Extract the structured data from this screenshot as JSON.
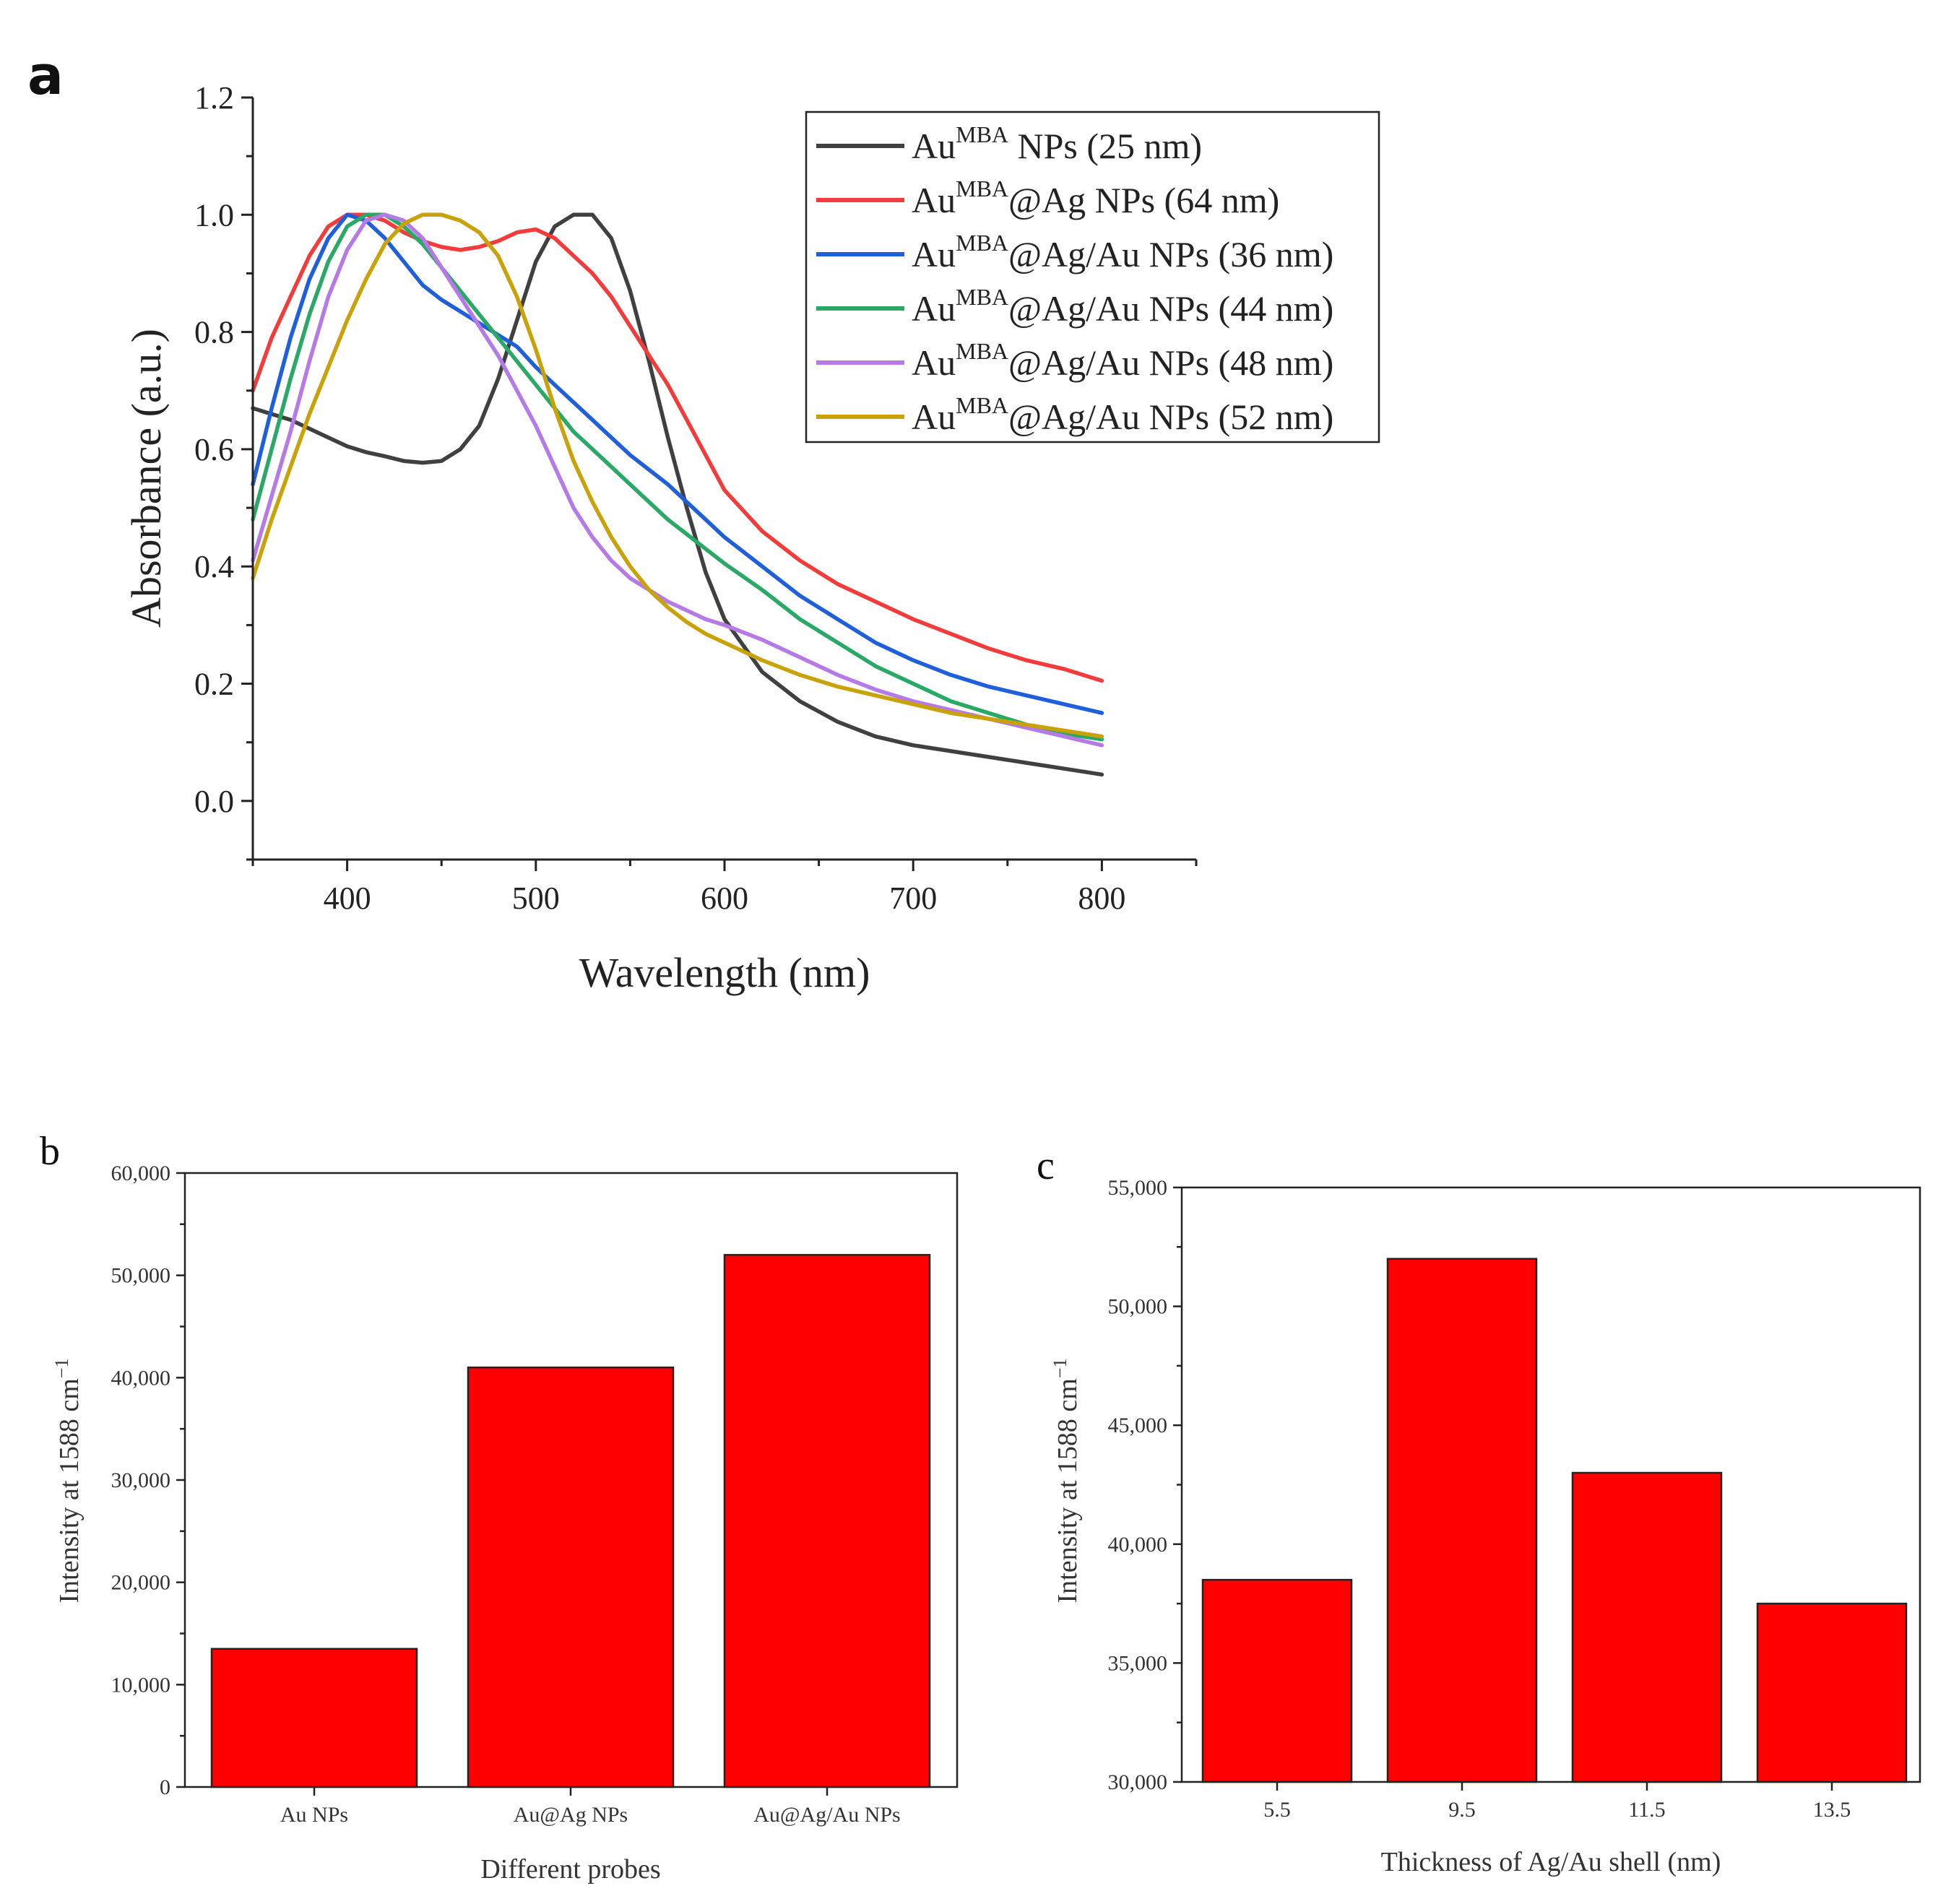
{
  "chart_data": [
    {
      "panel": "a",
      "type": "line",
      "title": "",
      "xlabel": "Wavelength (nm)",
      "ylabel": "Absorbance (a.u.)",
      "xlim": [
        350,
        850
      ],
      "ylim": [
        -0.1,
        1.2
      ],
      "xticks": [
        "400",
        "500",
        "600",
        "700",
        "800"
      ],
      "yticks": [
        "0.0",
        "0.2",
        "0.4",
        "0.6",
        "0.8",
        "1.0",
        "1.2"
      ],
      "x": [
        350,
        360,
        370,
        380,
        390,
        400,
        410,
        420,
        430,
        440,
        450,
        460,
        470,
        480,
        490,
        500,
        510,
        520,
        530,
        540,
        550,
        560,
        570,
        580,
        590,
        600,
        620,
        640,
        660,
        680,
        700,
        720,
        740,
        760,
        780,
        800
      ],
      "legend_position": "top-right",
      "series": [
        {
          "name_base": "Au",
          "name_sup": "MBA",
          "name_rest": " NPs (25 nm)",
          "color": "#404040",
          "values": [
            0.67,
            0.66,
            0.65,
            0.635,
            0.62,
            0.605,
            0.595,
            0.588,
            0.58,
            0.577,
            0.58,
            0.6,
            0.64,
            0.72,
            0.82,
            0.92,
            0.98,
            1.0,
            1.0,
            0.96,
            0.87,
            0.75,
            0.62,
            0.5,
            0.39,
            0.31,
            0.22,
            0.17,
            0.135,
            0.11,
            0.095,
            0.085,
            0.075,
            0.065,
            0.055,
            0.045
          ]
        },
        {
          "name_base": "Au",
          "name_sup": "MBA",
          "name_rest": "@Ag NPs (64 nm)",
          "color": "#f23c3c",
          "values": [
            0.7,
            0.79,
            0.86,
            0.93,
            0.98,
            1.0,
            1.0,
            0.99,
            0.97,
            0.955,
            0.945,
            0.94,
            0.945,
            0.955,
            0.97,
            0.975,
            0.96,
            0.93,
            0.9,
            0.86,
            0.81,
            0.76,
            0.71,
            0.65,
            0.59,
            0.53,
            0.46,
            0.41,
            0.37,
            0.34,
            0.31,
            0.285,
            0.26,
            0.24,
            0.225,
            0.205
          ]
        },
        {
          "name_base": "Au",
          "name_sup": "MBA",
          "name_rest": "@Ag/Au NPs (36 nm)",
          "color": "#1f5fd9",
          "values": [
            0.54,
            0.67,
            0.79,
            0.89,
            0.96,
            1.0,
            0.99,
            0.96,
            0.92,
            0.88,
            0.855,
            0.835,
            0.815,
            0.795,
            0.775,
            0.74,
            0.71,
            0.68,
            0.65,
            0.62,
            0.59,
            0.565,
            0.54,
            0.51,
            0.48,
            0.45,
            0.4,
            0.35,
            0.31,
            0.27,
            0.24,
            0.215,
            0.195,
            0.18,
            0.165,
            0.15
          ]
        },
        {
          "name_base": "Au",
          "name_sup": "MBA",
          "name_rest": "@Ag/Au NPs (44 nm)",
          "color": "#2aa866",
          "values": [
            0.48,
            0.6,
            0.72,
            0.83,
            0.92,
            0.98,
            1.0,
            1.0,
            0.98,
            0.95,
            0.91,
            0.87,
            0.83,
            0.79,
            0.75,
            0.71,
            0.67,
            0.63,
            0.6,
            0.57,
            0.54,
            0.51,
            0.48,
            0.455,
            0.43,
            0.405,
            0.36,
            0.31,
            0.27,
            0.23,
            0.2,
            0.17,
            0.15,
            0.13,
            0.115,
            0.105
          ]
        },
        {
          "name_base": "Au",
          "name_sup": "MBA",
          "name_rest": "@Ag/Au NPs (48 nm)",
          "color": "#b57ae6",
          "values": [
            0.41,
            0.52,
            0.63,
            0.75,
            0.86,
            0.94,
            0.99,
            1.0,
            0.99,
            0.96,
            0.91,
            0.86,
            0.81,
            0.76,
            0.7,
            0.64,
            0.57,
            0.5,
            0.45,
            0.41,
            0.38,
            0.36,
            0.34,
            0.325,
            0.31,
            0.3,
            0.275,
            0.245,
            0.215,
            0.19,
            0.17,
            0.155,
            0.14,
            0.125,
            0.11,
            0.095
          ]
        },
        {
          "name_base": "Au",
          "name_sup": "MBA",
          "name_rest": "@Ag/Au NPs (52 nm)",
          "color": "#c9a20a",
          "values": [
            0.38,
            0.48,
            0.57,
            0.66,
            0.74,
            0.82,
            0.89,
            0.95,
            0.985,
            1.0,
            1.0,
            0.99,
            0.97,
            0.93,
            0.86,
            0.77,
            0.67,
            0.58,
            0.51,
            0.45,
            0.4,
            0.36,
            0.33,
            0.305,
            0.285,
            0.27,
            0.24,
            0.215,
            0.195,
            0.18,
            0.165,
            0.15,
            0.14,
            0.13,
            0.12,
            0.11
          ]
        }
      ]
    },
    {
      "panel": "b",
      "type": "bar",
      "title": "",
      "xlabel": "Different probes",
      "ylabel": "Intensity at 1588 cm",
      "ylabel_sup": "−1",
      "ylim": [
        0,
        60000
      ],
      "yticks": [
        "0",
        "10,000",
        "20,000",
        "30,000",
        "40,000",
        "50,000",
        "60,000"
      ],
      "categories": [
        "Au NPs",
        "Au@Ag NPs",
        "Au@Ag/Au NPs"
      ],
      "values": [
        13500,
        41000,
        52000
      ],
      "color": "#ff0000"
    },
    {
      "panel": "c",
      "type": "bar",
      "title": "",
      "xlabel": "Thickness of Ag/Au shell (nm)",
      "ylabel": "Intensity at 1588 cm",
      "ylabel_sup": "−1",
      "ylim": [
        30000,
        55000
      ],
      "yticks": [
        "30,000",
        "35,000",
        "40,000",
        "45,000",
        "50,000",
        "55,000"
      ],
      "categories": [
        "5.5",
        "9.5",
        "11.5",
        "13.5"
      ],
      "values": [
        38500,
        52000,
        43000,
        37500
      ],
      "color": "#ff0000"
    }
  ],
  "labels": {
    "a": "a",
    "b": "b",
    "c": "c"
  }
}
